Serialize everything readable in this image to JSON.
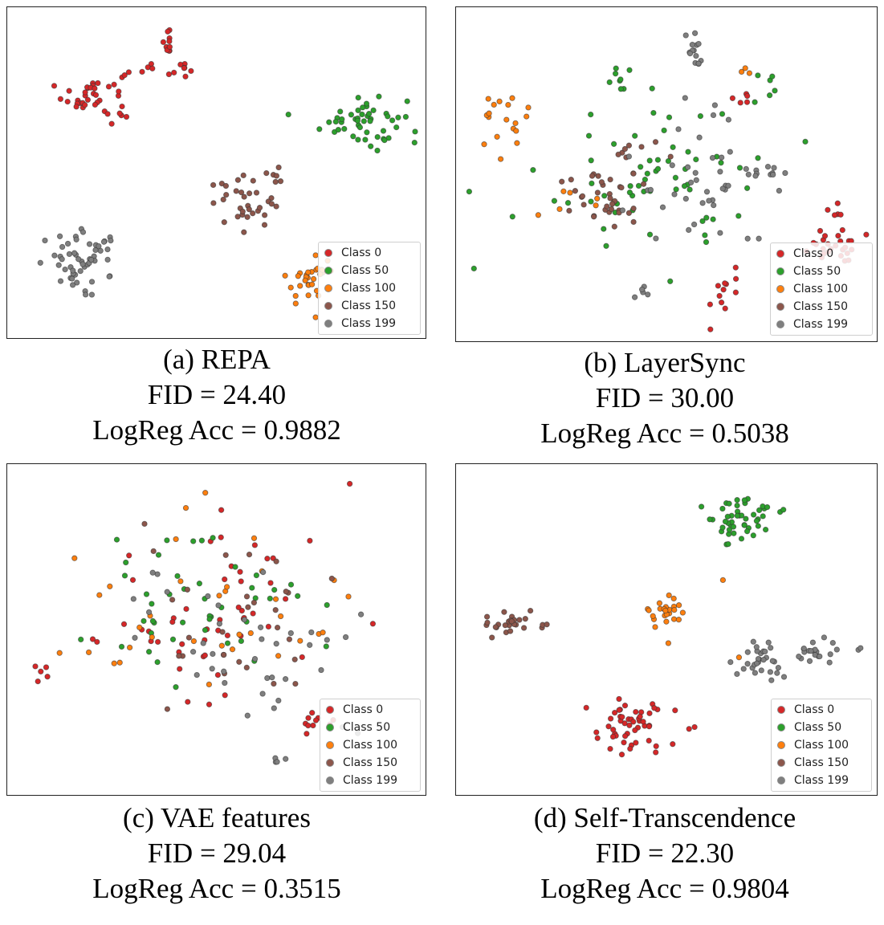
{
  "colors": {
    "Class 0": "#d62728",
    "Class 50": "#2ca02c",
    "Class 100": "#ff7f0e",
    "Class 150": "#8c564b",
    "Class 199": "#7f7f7f"
  },
  "legend_labels": [
    "Class 0",
    "Class 50",
    "Class 100",
    "Class 150",
    "Class 199"
  ],
  "chart_data": [
    {
      "type": "scatter",
      "panel_label": "(a) REPA",
      "fid_text": "FID = 24.40",
      "acc_text": "LogReg Acc = 0.9882",
      "legend": [
        "Class 0",
        "Class 50",
        "Class 100",
        "Class 150",
        "Class 199"
      ],
      "legend_location": "lower right",
      "xlim": [
        0,
        100
      ],
      "ylim": [
        0,
        100
      ],
      "grid": false,
      "series": [
        {
          "name": "Class 0",
          "clusters": [
            {
              "cx": 20,
              "cy": 75,
              "sx": 5.5,
              "sy": 6,
              "n": 40
            },
            {
              "cx": 38,
              "cy": 91,
              "sx": 1.2,
              "sy": 4.5,
              "n": 12
            },
            {
              "cx": 33,
              "cy": 83,
              "sx": 1.2,
              "sy": 1.5,
              "n": 4
            },
            {
              "cx": 42,
              "cy": 83,
              "sx": 1.2,
              "sy": 1.5,
              "n": 6
            }
          ]
        },
        {
          "name": "Class 50",
          "clusters": [
            {
              "cx": 86,
              "cy": 67,
              "sx": 7,
              "sy": 6,
              "n": 50
            }
          ]
        },
        {
          "name": "Class 100",
          "clusters": [
            {
              "cx": 73,
              "cy": 16,
              "sx": 4,
              "sy": 5,
              "n": 30
            }
          ]
        },
        {
          "name": "Class 150",
          "clusters": [
            {
              "cx": 56,
              "cy": 41,
              "sx": 5.5,
              "sy": 5,
              "n": 32
            },
            {
              "cx": 66,
              "cy": 50,
              "sx": 2.5,
              "sy": 2,
              "n": 6
            }
          ]
        },
        {
          "name": "Class 199",
          "clusters": [
            {
              "cx": 17,
              "cy": 22,
              "sx": 7,
              "sy": 6,
              "n": 55
            }
          ]
        }
      ]
    },
    {
      "type": "scatter",
      "panel_label": "(b) LayerSync",
      "fid_text": "FID = 30.00",
      "acc_text": "LogReg Acc = 0.5038",
      "legend": [
        "Class 0",
        "Class 50",
        "Class 100",
        "Class 150",
        "Class 199"
      ],
      "legend_location": "lower right",
      "xlim": [
        0,
        100
      ],
      "ylim": [
        0,
        100
      ],
      "grid": false,
      "series": [
        {
          "name": "Class 0",
          "clusters": [
            {
              "cx": 91,
              "cy": 28,
              "sx": 4.5,
              "sy": 4,
              "n": 26
            },
            {
              "cx": 64,
              "cy": 13,
              "sx": 2.5,
              "sy": 5,
              "n": 12
            },
            {
              "cx": 92,
              "cy": 39,
              "sx": 1.5,
              "sy": 2,
              "n": 5
            },
            {
              "cx": 69,
              "cy": 74,
              "sx": 2.5,
              "sy": 2,
              "n": 5
            }
          ]
        },
        {
          "name": "Class 50",
          "clusters": [
            {
              "cx": 46,
              "cy": 50,
              "sx": 18,
              "sy": 17,
              "n": 62
            },
            {
              "cx": 38,
              "cy": 79,
              "sx": 3,
              "sy": 4,
              "n": 8
            },
            {
              "cx": 74,
              "cy": 80,
              "sx": 4,
              "sy": 6,
              "n": 6
            }
          ]
        },
        {
          "name": "Class 100",
          "clusters": [
            {
              "cx": 10,
              "cy": 66,
              "sx": 4.5,
              "sy": 7,
              "n": 18
            },
            {
              "cx": 30,
              "cy": 42,
              "sx": 10,
              "sy": 8,
              "n": 8
            },
            {
              "cx": 70,
              "cy": 82,
              "sx": 1.5,
              "sy": 1.5,
              "n": 3
            }
          ]
        },
        {
          "name": "Class 150",
          "clusters": [
            {
              "cx": 34,
              "cy": 44,
              "sx": 6,
              "sy": 7,
              "n": 36
            },
            {
              "cx": 42,
              "cy": 60,
              "sx": 8,
              "sy": 4,
              "n": 6
            }
          ]
        },
        {
          "name": "Class 199",
          "clusters": [
            {
              "cx": 59,
              "cy": 49,
              "sx": 12,
              "sy": 16,
              "n": 38
            },
            {
              "cx": 56,
              "cy": 88,
              "sx": 2,
              "sy": 5,
              "n": 14
            },
            {
              "cx": 72,
              "cy": 52,
              "sx": 3,
              "sy": 3,
              "n": 6
            },
            {
              "cx": 76,
              "cy": 51,
              "sx": 1.5,
              "sy": 2,
              "n": 5
            },
            {
              "cx": 44,
              "cy": 12,
              "sx": 1.2,
              "sy": 3,
              "n": 5
            }
          ]
        }
      ]
    },
    {
      "type": "scatter",
      "panel_label": "(c) VAE features",
      "fid_text": "FID = 29.04",
      "acc_text": "LogReg Acc = 0.3515",
      "legend": [
        "Class 0",
        "Class 50",
        "Class 100",
        "Class 150",
        "Class 199"
      ],
      "legend_location": "lower right",
      "xlim": [
        0,
        100
      ],
      "ylim": [
        0,
        100
      ],
      "grid": false,
      "series": [
        {
          "name": "Class 0",
          "clusters": [
            {
              "cx": 52,
              "cy": 56,
              "sx": 22,
              "sy": 21,
              "n": 50
            },
            {
              "cx": 7,
              "cy": 38,
              "sx": 1.5,
              "sy": 2.5,
              "n": 5
            },
            {
              "cx": 74,
              "cy": 22,
              "sx": 4,
              "sy": 4,
              "n": 10
            }
          ]
        },
        {
          "name": "Class 50",
          "clusters": [
            {
              "cx": 44,
              "cy": 55,
              "sx": 20,
              "sy": 18,
              "n": 45
            }
          ]
        },
        {
          "name": "Class 100",
          "clusters": [
            {
              "cx": 50,
              "cy": 52,
              "sx": 22,
              "sy": 21,
              "n": 34
            }
          ]
        },
        {
          "name": "Class 150",
          "clusters": [
            {
              "cx": 54,
              "cy": 58,
              "sx": 21,
              "sy": 20,
              "n": 28
            }
          ]
        },
        {
          "name": "Class 199",
          "clusters": [
            {
              "cx": 56,
              "cy": 42,
              "sx": 20,
              "sy": 18,
              "n": 38
            },
            {
              "cx": 65,
              "cy": 9,
              "sx": 2,
              "sy": 1,
              "n": 4
            }
          ]
        }
      ]
    },
    {
      "type": "scatter",
      "panel_label": "(d) Self-Transcendence",
      "fid_text": "FID = 22.30",
      "acc_text": "LogReg Acc = 0.9804",
      "legend": [
        "Class 0",
        "Class 50",
        "Class 100",
        "Class 150",
        "Class 199"
      ],
      "legend_location": "lower right",
      "xlim": [
        0,
        100
      ],
      "ylim": [
        0,
        100
      ],
      "grid": false,
      "series": [
        {
          "name": "Class 0",
          "clusters": [
            {
              "cx": 40,
              "cy": 19,
              "sx": 8,
              "sy": 6,
              "n": 52
            }
          ]
        },
        {
          "name": "Class 50",
          "clusters": [
            {
              "cx": 68,
              "cy": 85,
              "sx": 5.5,
              "sy": 5.5,
              "n": 48
            }
          ]
        },
        {
          "name": "Class 100",
          "clusters": [
            {
              "cx": 50,
              "cy": 56,
              "sx": 3.5,
              "sy": 4,
              "n": 24
            },
            {
              "cx": 63,
              "cy": 66,
              "sx": 0.6,
              "sy": 0.6,
              "n": 1
            },
            {
              "cx": 68,
              "cy": 42,
              "sx": 0.6,
              "sy": 0.6,
              "n": 1
            }
          ]
        },
        {
          "name": "Class 150",
          "clusters": [
            {
              "cx": 13,
              "cy": 52,
              "sx": 5,
              "sy": 2.5,
              "n": 26
            }
          ]
        },
        {
          "name": "Class 199",
          "clusters": [
            {
              "cx": 73,
              "cy": 40,
              "sx": 5,
              "sy": 3.5,
              "n": 32
            },
            {
              "cx": 89,
              "cy": 43,
              "sx": 5,
              "sy": 2.5,
              "n": 20
            }
          ]
        }
      ]
    }
  ]
}
